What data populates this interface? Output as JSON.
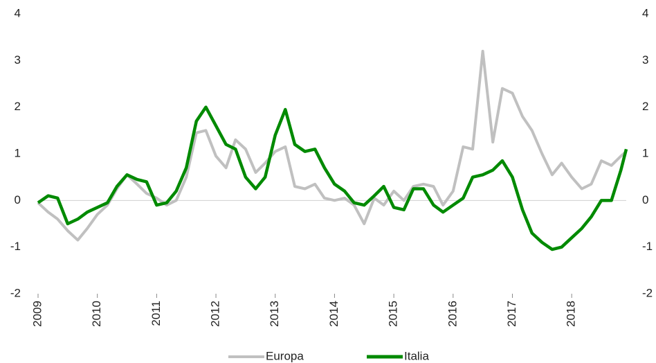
{
  "chart_data": {
    "type": "line",
    "x": [
      2009,
      2009.17,
      2009.33,
      2009.5,
      2009.67,
      2009.83,
      2010,
      2010.17,
      2010.33,
      2010.5,
      2010.67,
      2010.83,
      2011,
      2011.17,
      2011.33,
      2011.5,
      2011.67,
      2011.83,
      2012,
      2012.17,
      2012.33,
      2012.5,
      2012.67,
      2012.83,
      2013,
      2013.17,
      2013.33,
      2013.5,
      2013.67,
      2013.83,
      2014,
      2014.17,
      2014.33,
      2014.5,
      2014.67,
      2014.83,
      2015,
      2015.17,
      2015.33,
      2015.5,
      2015.67,
      2015.83,
      2016,
      2016.17,
      2016.33,
      2016.5,
      2016.67,
      2016.83,
      2017,
      2017.17,
      2017.33,
      2017.5,
      2017.67,
      2017.83,
      2018,
      2018.17,
      2018.33,
      2018.5,
      2018.67,
      2018.83,
      2018.92
    ],
    "series": [
      {
        "name": "Europa",
        "color": "#c0c0c0",
        "values": [
          -0.05,
          -0.25,
          -0.4,
          -0.65,
          -0.85,
          -0.6,
          -0.3,
          -0.1,
          0.25,
          0.55,
          0.35,
          0.15,
          0.05,
          -0.1,
          0.0,
          0.5,
          1.45,
          1.5,
          0.95,
          0.7,
          1.3,
          1.1,
          0.6,
          0.8,
          1.05,
          1.15,
          0.3,
          0.25,
          0.35,
          0.05,
          0.0,
          0.05,
          -0.1,
          -0.5,
          0.05,
          -0.1,
          0.2,
          0.0,
          0.3,
          0.35,
          0.3,
          -0.1,
          0.2,
          1.15,
          1.1,
          3.2,
          1.25,
          2.4,
          2.3,
          1.8,
          1.5,
          1.0,
          0.55,
          0.8,
          0.5,
          0.25,
          0.35,
          0.85,
          0.75,
          0.95,
          1.05
        ]
      },
      {
        "name": "Italia",
        "color": "#008a00",
        "values": [
          -0.05,
          0.1,
          0.05,
          -0.5,
          -0.4,
          -0.25,
          -0.15,
          -0.05,
          0.3,
          0.55,
          0.45,
          0.4,
          -0.1,
          -0.05,
          0.2,
          0.7,
          1.7,
          2.0,
          1.6,
          1.2,
          1.1,
          0.5,
          0.25,
          0.5,
          1.4,
          1.95,
          1.2,
          1.05,
          1.1,
          0.7,
          0.35,
          0.2,
          -0.05,
          -0.1,
          0.1,
          0.3,
          -0.15,
          -0.2,
          0.25,
          0.25,
          -0.1,
          -0.25,
          -0.1,
          0.05,
          0.5,
          0.55,
          0.65,
          0.85,
          0.5,
          -0.2,
          -0.7,
          -0.9,
          -1.05,
          -1.0,
          -0.8,
          -0.6,
          -0.35,
          0.0,
          0.0,
          0.65,
          1.1
        ]
      }
    ],
    "xlim": [
      2009,
      2018.92
    ],
    "xticks": [
      2009,
      2010,
      2011,
      2012,
      2013,
      2014,
      2015,
      2016,
      2017,
      2018
    ],
    "ylim": [
      -2,
      4
    ],
    "yticks": [
      -2,
      -1,
      0,
      1,
      2,
      3,
      4
    ],
    "y2lim": [
      -2,
      4
    ],
    "y2ticks": [
      -2,
      -1,
      0,
      1,
      2,
      3,
      4
    ],
    "legend": "bottom"
  }
}
